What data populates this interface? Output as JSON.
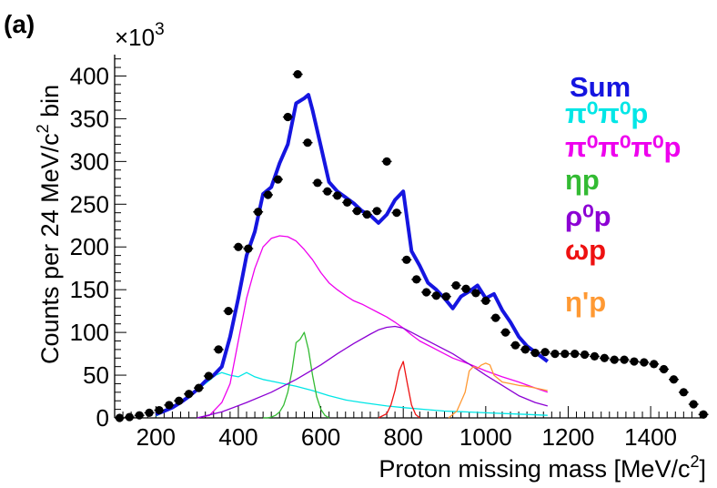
{
  "chart_data": {
    "type": "line",
    "panel_label": "(a)",
    "title": "",
    "xlabel": "Proton missing mass [MeV/c",
    "xlabel_sup": "2",
    "xlabel_end": "]",
    "ylabel": "Counts per 24 MeV/c",
    "ylabel_sup": "2",
    "ylabel_end": " bin",
    "y_multiplier": "×10",
    "y_multiplier_sup": "3",
    "xlim": [
      100,
      1530
    ],
    "ylim": [
      0,
      425
    ],
    "x_ticks": [
      200,
      400,
      600,
      800,
      1000,
      1200,
      1400
    ],
    "x_tick_labels": [
      "200",
      "400",
      "600",
      "800",
      "1000",
      "1200",
      "1400"
    ],
    "y_ticks": [
      0,
      50,
      100,
      150,
      200,
      250,
      300,
      350,
      400
    ],
    "y_tick_labels": [
      "0",
      "50",
      "100",
      "150",
      "200",
      "250",
      "300",
      "350",
      "400"
    ],
    "data_points": {
      "name": "Data",
      "color": "#000000",
      "x": [
        112,
        136,
        160,
        184,
        208,
        232,
        256,
        280,
        304,
        328,
        352,
        376,
        400,
        424,
        448,
        472,
        496,
        520,
        544,
        568,
        592,
        616,
        640,
        664,
        688,
        712,
        736,
        760,
        784,
        808,
        832,
        856,
        880,
        904,
        928,
        952,
        976,
        1000,
        1024,
        1048,
        1072,
        1096,
        1120,
        1144,
        1168,
        1192,
        1216,
        1240,
        1264,
        1288,
        1312,
        1336,
        1360,
        1384,
        1408,
        1432,
        1456,
        1480,
        1504,
        1528
      ],
      "y": [
        0,
        1,
        3,
        6,
        9,
        15,
        20,
        28,
        35,
        49,
        80,
        125,
        200,
        198,
        241,
        261,
        279,
        352,
        402,
        322,
        275,
        265,
        260,
        252,
        242,
        238,
        242,
        300,
        240,
        185,
        162,
        147,
        143,
        142,
        155,
        151,
        146,
        137,
        117,
        100,
        85,
        80,
        76,
        77,
        75,
        75,
        75,
        74,
        72,
        70,
        68,
        68,
        66,
        65,
        63,
        57,
        45,
        30,
        16,
        4
      ],
      "xerr": 12
    },
    "series": [
      {
        "name": "Sum",
        "color": "#1515e0",
        "x": [
          200,
          220,
          240,
          260,
          280,
          300,
          320,
          340,
          360,
          380,
          400,
          420,
          440,
          460,
          480,
          500,
          520,
          540,
          560,
          570,
          580,
          600,
          620,
          640,
          660,
          680,
          700,
          720,
          740,
          760,
          780,
          800,
          820,
          840,
          860,
          880,
          900,
          920,
          940,
          960,
          980,
          1000,
          1020,
          1040,
          1060,
          1080,
          1100,
          1120,
          1150
        ],
        "y": [
          4,
          8,
          12,
          18,
          25,
          33,
          43,
          50,
          60,
          95,
          140,
          190,
          218,
          262,
          270,
          298,
          320,
          368,
          374,
          378,
          360,
          318,
          276,
          265,
          258,
          251,
          242,
          237,
          228,
          238,
          255,
          265,
          195,
          178,
          158,
          150,
          140,
          128,
          142,
          148,
          155,
          140,
          145,
          126,
          112,
          95,
          84,
          77,
          66
        ]
      },
      {
        "name": "π⁰π⁰p",
        "color": "#00e6e6",
        "x": [
          200,
          240,
          280,
          320,
          345,
          360,
          380,
          400,
          420,
          440,
          460,
          480,
          500,
          540,
          580,
          620,
          660,
          700,
          760,
          800,
          850,
          900,
          950,
          1000,
          1050,
          1100,
          1150
        ],
        "y": [
          2,
          12,
          25,
          40,
          50,
          53,
          50,
          48,
          53,
          48,
          45,
          43,
          41,
          37,
          32,
          26,
          21,
          18,
          14,
          12,
          10,
          8,
          7,
          6,
          5,
          4,
          3
        ]
      },
      {
        "name": "π⁰π⁰π⁰p",
        "color": "#ee00ee",
        "x": [
          300,
          330,
          360,
          380,
          400,
          420,
          440,
          460,
          480,
          500,
          520,
          540,
          560,
          580,
          600,
          620,
          640,
          660,
          680,
          700,
          720,
          740,
          760,
          780,
          800,
          820,
          840,
          880,
          920,
          960,
          1000,
          1040,
          1080,
          1120,
          1150
        ],
        "y": [
          0,
          3,
          18,
          40,
          90,
          140,
          175,
          200,
          210,
          213,
          212,
          207,
          197,
          185,
          170,
          158,
          150,
          143,
          137,
          133,
          128,
          123,
          118,
          112,
          105,
          97,
          90,
          80,
          70,
          63,
          55,
          48,
          42,
          35,
          30
        ]
      },
      {
        "name": "ηp",
        "color": "#33bb33",
        "x": [
          460,
          470,
          480,
          490,
          500,
          510,
          520,
          530,
          540,
          550,
          560,
          570,
          580,
          590,
          600,
          610,
          620
        ],
        "y": [
          0,
          0,
          1,
          3,
          7,
          15,
          30,
          55,
          88,
          92,
          100,
          80,
          50,
          25,
          10,
          3,
          0
        ]
      },
      {
        "name": "ρ⁰p",
        "color": "#8c00d4",
        "x": [
          300,
          360,
          420,
          480,
          540,
          600,
          640,
          680,
          720,
          740,
          760,
          780,
          800,
          820,
          840,
          880,
          920,
          960,
          1000,
          1040,
          1080,
          1120,
          1150
        ],
        "y": [
          0,
          7,
          18,
          30,
          45,
          62,
          75,
          87,
          98,
          103,
          106,
          107,
          105,
          100,
          95,
          85,
          75,
          63,
          50,
          38,
          26,
          18,
          14
        ]
      },
      {
        "name": "ωp",
        "color": "#ee1111",
        "x": [
          740,
          760,
          770,
          780,
          790,
          800,
          810,
          820,
          830,
          840
        ],
        "y": [
          0,
          5,
          15,
          32,
          55,
          66,
          40,
          15,
          4,
          0
        ]
      },
      {
        "name": "η'p",
        "color": "#ff9933",
        "x": [
          910,
          930,
          950,
          960,
          970,
          980,
          990,
          1000,
          1010,
          1020,
          1040,
          1060,
          1080,
          1100,
          1120,
          1150
        ],
        "y": [
          0,
          8,
          30,
          55,
          60,
          58,
          62,
          64,
          62,
          50,
          42,
          40,
          38,
          37,
          35,
          32
        ]
      }
    ],
    "legend": {
      "position": "top-right",
      "entries": [
        {
          "label": "Sum",
          "color": "#1515e0"
        },
        {
          "label": "π⁰π⁰p",
          "color": "#00e6e6"
        },
        {
          "label": "π⁰π⁰π⁰p",
          "color": "#ee00ee"
        },
        {
          "label": "ηp",
          "color": "#33bb33"
        },
        {
          "label": "ρ⁰p",
          "color": "#8c00d4"
        },
        {
          "label": "ωp",
          "color": "#ee1111"
        },
        {
          "label": "η'p",
          "color": "#ff9933"
        }
      ]
    }
  }
}
